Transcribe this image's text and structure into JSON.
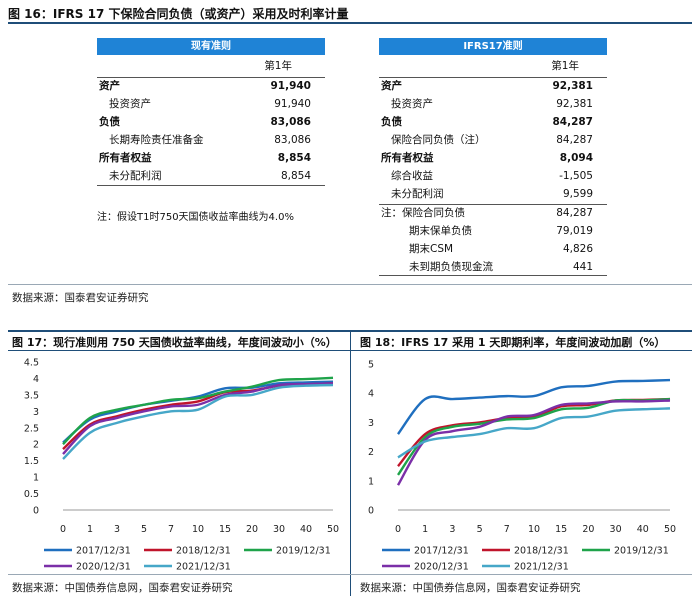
{
  "figure16": {
    "title": "图 16：IFRS 17 下保险合同负债（或资产）采用及时利率计量",
    "left": {
      "header": "现有准则",
      "period": "第1年",
      "rows": [
        {
          "label": "资产",
          "value": "91,940",
          "bold": true
        },
        {
          "label": "投资资产",
          "value": "91,940",
          "bold": false
        },
        {
          "label": "负债",
          "value": "83,086",
          "bold": true
        },
        {
          "label": "长期寿险责任准备金",
          "value": "83,086",
          "bold": false
        },
        {
          "label": "所有者权益",
          "value": "8,854",
          "bold": true
        },
        {
          "label": "未分配利润",
          "value": "8,854",
          "bold": false
        }
      ],
      "note": "注：假设T1时750天国债收益率曲线为4.0%"
    },
    "right": {
      "header": "IFRS17准则",
      "period": "第1年",
      "rows": [
        {
          "label": "资产",
          "value": "92,381",
          "bold": true
        },
        {
          "label": "投资资产",
          "value": "92,381",
          "bold": false
        },
        {
          "label": "负债",
          "value": "84,287",
          "bold": true
        },
        {
          "label": "保险合同负债（注）",
          "value": "84,287",
          "bold": false
        },
        {
          "label": "所有者权益",
          "value": "8,094",
          "bold": true
        },
        {
          "label": "综合收益",
          "value": "-1,505",
          "bold": false
        },
        {
          "label": "未分配利润",
          "value": "9,599",
          "bold": false
        }
      ],
      "note_rows": [
        {
          "label": "注：保险合同负债",
          "value": "84,287"
        },
        {
          "label": "期末保单负债",
          "value": "79,019"
        },
        {
          "label": "期末CSM",
          "value": "4,826"
        },
        {
          "label": "未到期负债现金流",
          "value": "441"
        }
      ]
    },
    "source": "数据来源：国泰君安证券研究"
  },
  "figure17": {
    "title": "图 17：现行准则用 750 天国债收益率曲线，年度间波动小（%）",
    "source": "数据来源：中国债券信息网，国泰君安证券研究"
  },
  "figure18": {
    "title": "图 18：IFRS 17 采用 1 天即期利率，年度间波动加剧（%）",
    "source": "数据来源：中国债券信息网，国泰君安证券研究"
  },
  "chart_data": [
    {
      "type": "line",
      "title": "现行准则用 750 天国债收益率曲线，年度间波动小（%）",
      "categories": [
        "0",
        "1",
        "3",
        "5",
        "7",
        "10",
        "15",
        "20",
        "30",
        "40",
        "50"
      ],
      "ylim": [
        0,
        4.5
      ],
      "yticks": [
        "0",
        "0.5",
        "1",
        "1.5",
        "2",
        "2.5",
        "3",
        "3.5",
        "4",
        "4.5"
      ],
      "series": [
        {
          "name": "2017/12/31",
          "color": "#1f6fbf",
          "values": [
            2.05,
            2.75,
            3.0,
            3.2,
            3.32,
            3.45,
            3.7,
            3.72,
            3.85,
            3.88,
            3.9
          ]
        },
        {
          "name": "2018/12/31",
          "color": "#c0142b",
          "values": [
            1.85,
            2.6,
            2.85,
            3.05,
            3.2,
            3.3,
            3.58,
            3.63,
            3.78,
            3.82,
            3.85
          ]
        },
        {
          "name": "2019/12/31",
          "color": "#1fa34a",
          "values": [
            2.0,
            2.8,
            3.05,
            3.2,
            3.35,
            3.4,
            3.6,
            3.75,
            3.95,
            3.98,
            4.02
          ]
        },
        {
          "name": "2020/12/31",
          "color": "#7b2fa8",
          "values": [
            1.7,
            2.55,
            2.8,
            3.0,
            3.15,
            3.2,
            3.5,
            3.6,
            3.8,
            3.83,
            3.85
          ]
        },
        {
          "name": "2021/12/31",
          "color": "#46a7c8",
          "values": [
            1.55,
            2.35,
            2.65,
            2.85,
            3.0,
            3.05,
            3.45,
            3.5,
            3.72,
            3.78,
            3.8
          ]
        }
      ]
    },
    {
      "type": "line",
      "title": "IFRS 17 采用 1 天即期利率，年度间波动加剧（%）",
      "categories": [
        "0",
        "1",
        "3",
        "5",
        "7",
        "10",
        "15",
        "20",
        "30",
        "40",
        "50"
      ],
      "ylim": [
        0,
        5
      ],
      "yticks": [
        "0",
        "1",
        "2",
        "3",
        "4",
        "5"
      ],
      "series": [
        {
          "name": "2017/12/31",
          "color": "#1f6fbf",
          "values": [
            2.6,
            3.8,
            3.8,
            3.85,
            3.9,
            3.9,
            4.2,
            4.25,
            4.4,
            4.42,
            4.45
          ]
        },
        {
          "name": "2018/12/31",
          "color": "#c0142b",
          "values": [
            1.5,
            2.6,
            2.9,
            3.0,
            3.15,
            3.2,
            3.55,
            3.6,
            3.75,
            3.77,
            3.8
          ]
        },
        {
          "name": "2019/12/31",
          "color": "#1fa34a",
          "values": [
            1.2,
            2.5,
            2.85,
            2.95,
            3.1,
            3.15,
            3.45,
            3.5,
            3.75,
            3.75,
            3.8
          ]
        },
        {
          "name": "2020/12/31",
          "color": "#7b2fa8",
          "values": [
            0.85,
            2.4,
            2.7,
            2.85,
            3.2,
            3.25,
            3.6,
            3.65,
            3.72,
            3.72,
            3.75
          ]
        },
        {
          "name": "2021/12/31",
          "color": "#46a7c8",
          "values": [
            1.8,
            2.35,
            2.5,
            2.6,
            2.8,
            2.8,
            3.15,
            3.2,
            3.4,
            3.45,
            3.48
          ]
        }
      ]
    }
  ]
}
